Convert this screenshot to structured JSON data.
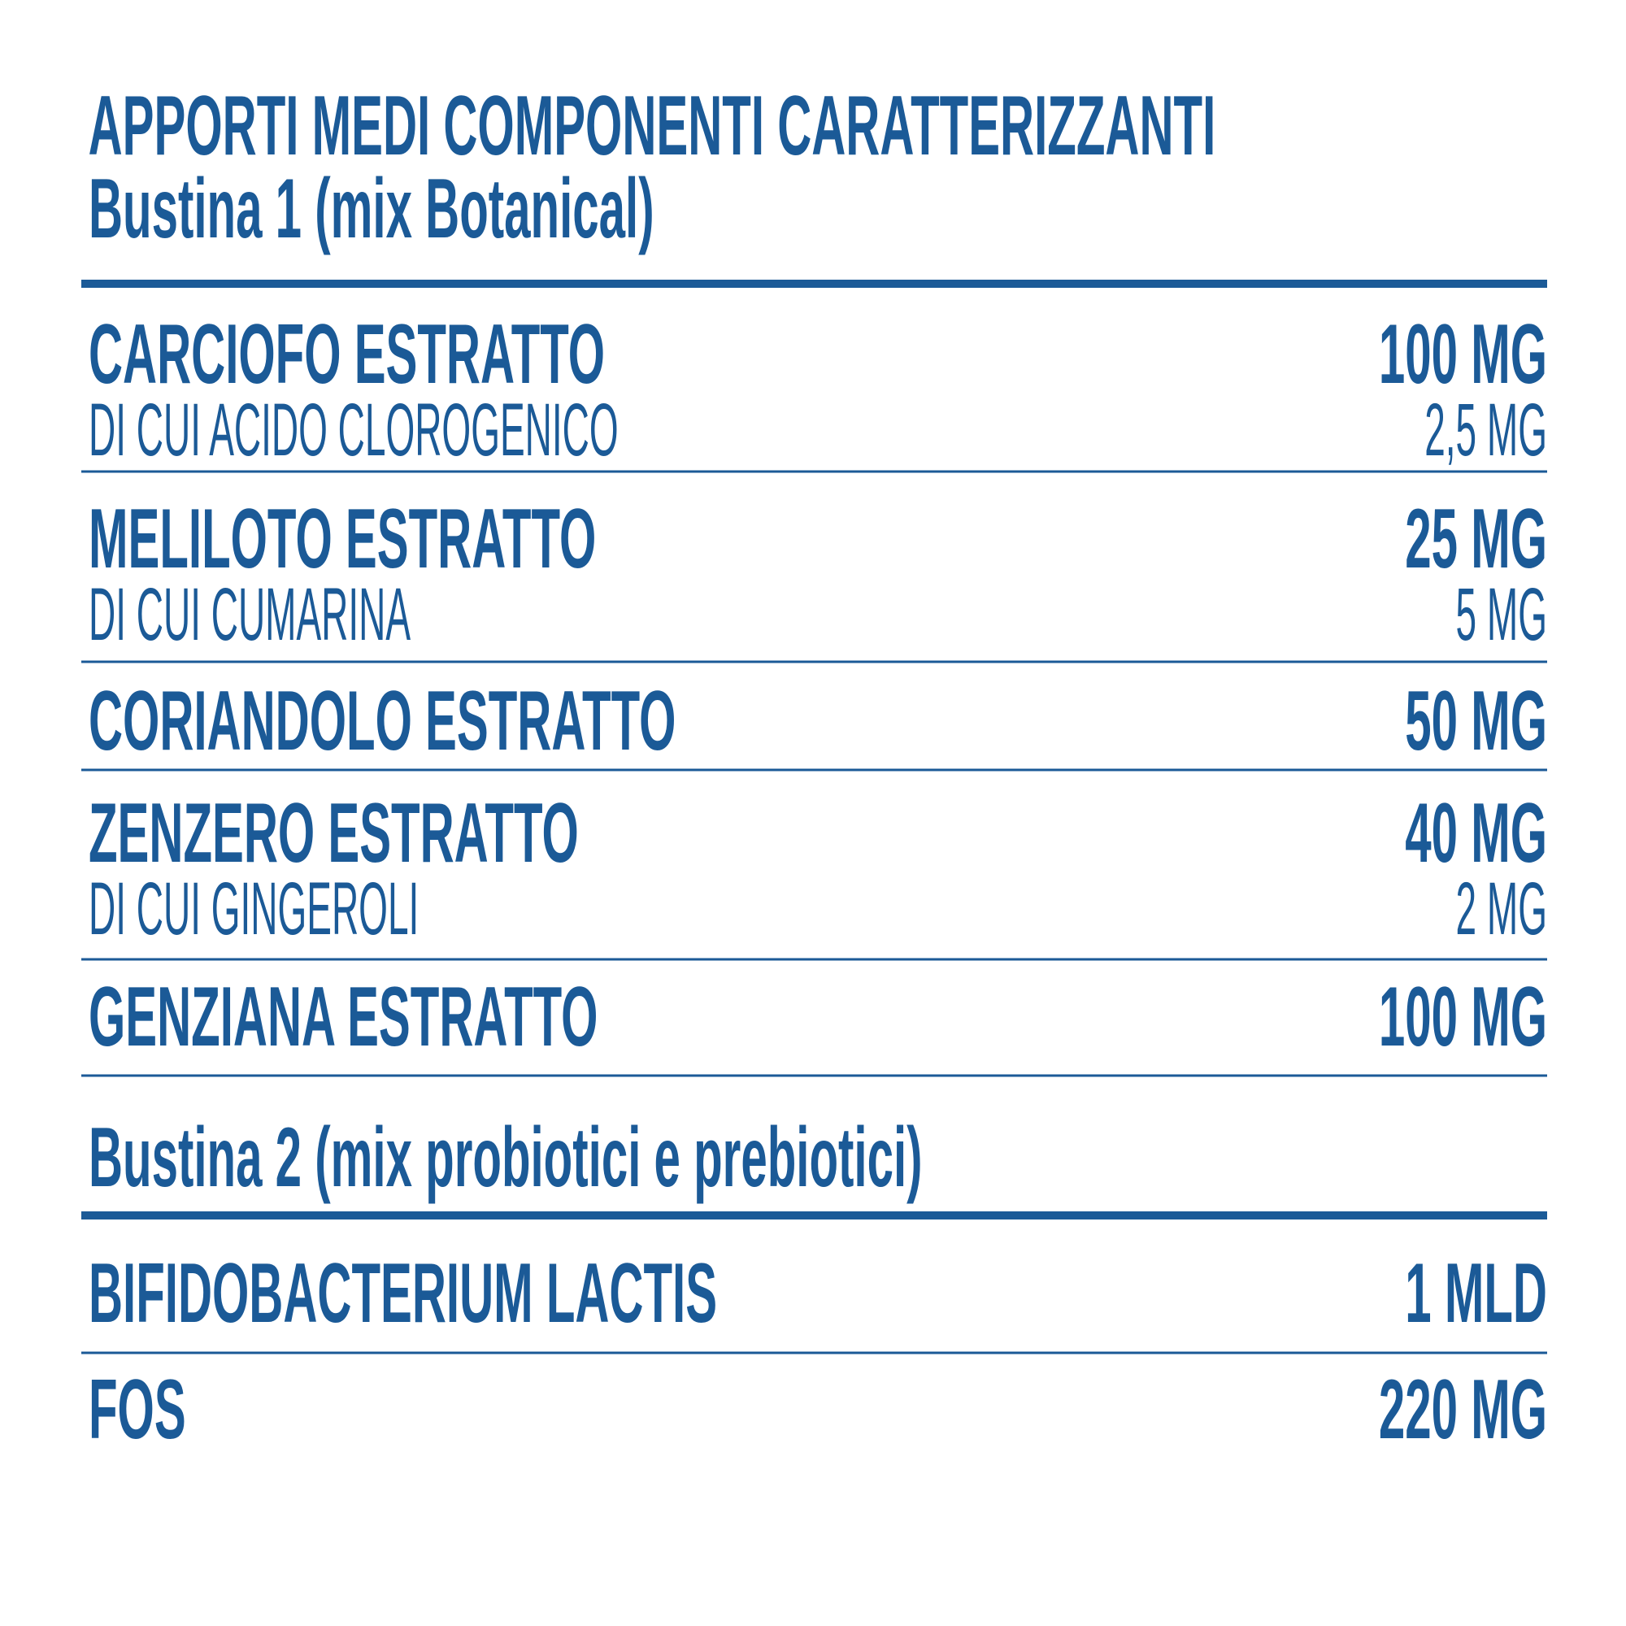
{
  "title": "APPORTI MEDI COMPONENTI CARATTERIZZANTI",
  "sections": [
    {
      "subtitle": "Bustina 1 (mix Botanical)",
      "rows": [
        {
          "name": "CARCIOFO ESTRATTO",
          "amount": "100 MG",
          "sub": {
            "name": "DI CUI ACIDO CLOROGENICO",
            "amount": "2,5 MG"
          }
        },
        {
          "name": "MELILOTO ESTRATTO",
          "amount": "25 MG",
          "sub": {
            "name": "DI CUI CUMARINA",
            "amount": "5 MG"
          }
        },
        {
          "name": "CORIANDOLO ESTRATTO",
          "amount": "50 MG"
        },
        {
          "name": "ZENZERO ESTRATTO",
          "amount": "40 MG",
          "sub": {
            "name": "DI CUI GINGEROLI",
            "amount": "2 MG"
          }
        },
        {
          "name": "GENZIANA ESTRATTO",
          "amount": "100 MG"
        }
      ]
    },
    {
      "subtitle": "Bustina 2 (mix probiotici e prebiotici)",
      "rows": [
        {
          "name": "BIFIDOBACTERIUM LACTIS",
          "amount": "1 MLD"
        },
        {
          "name": "FOS",
          "amount": "220 MG"
        }
      ]
    }
  ]
}
